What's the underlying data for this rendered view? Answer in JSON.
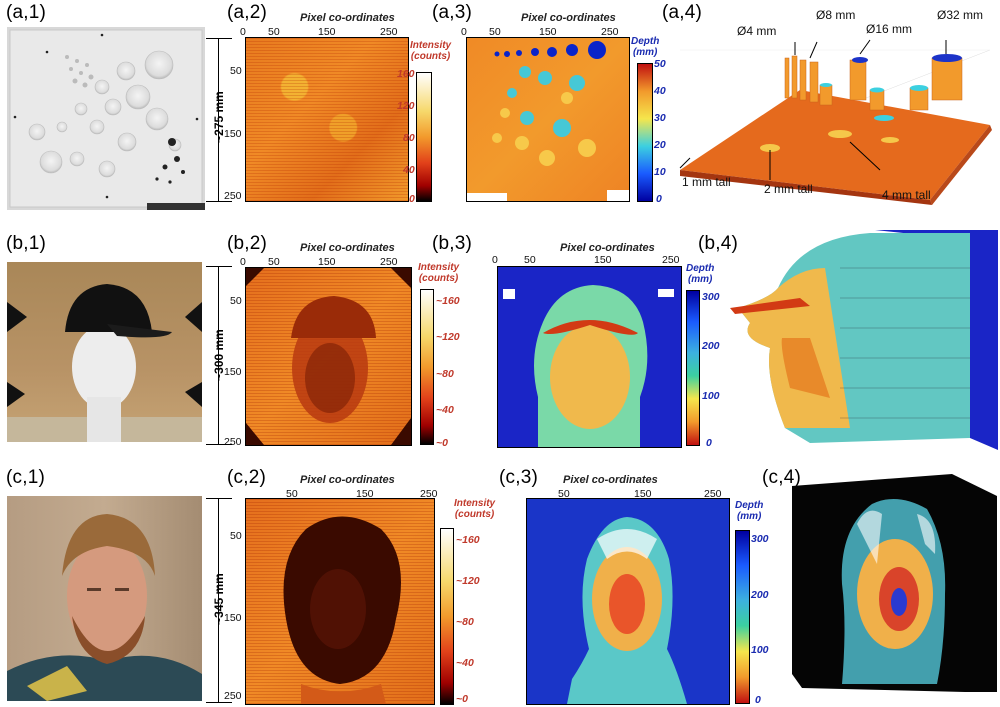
{
  "panel_labels": {
    "a1": "(a,1)",
    "a2": "(a,2)",
    "a3": "(a,3)",
    "a4": "(a,4)",
    "b1": "(b,1)",
    "b2": "(b,2)",
    "b3": "(b,3)",
    "b4": "(b,4)",
    "c1": "(c,1)",
    "c2": "(c,2)",
    "c3": "(c,3)",
    "c4": "(c,4)"
  },
  "pixel_axis_title": "Pixel co-ordinates",
  "x_ticks": [
    "0",
    "50",
    "150",
    "250"
  ],
  "y_ticks": [
    "50",
    "150",
    "250"
  ],
  "intensity_title": "Intensity\n(counts)",
  "depth_title": "Depth\n(mm)",
  "intensity_ticks": [
    "160",
    "120",
    "80",
    "40",
    "0"
  ],
  "intensity_ticks_dash": [
    "~160",
    "~120",
    "~80",
    "~40",
    "~0"
  ],
  "depth_ticks_a": [
    "50",
    "40",
    "30",
    "20",
    "10",
    "0"
  ],
  "depth_ticks_bc": [
    "300",
    "200",
    "100",
    "0"
  ],
  "row_dims": {
    "a": "~275 mm",
    "b": "~300 mm",
    "c": "~345 mm"
  },
  "annotations": {
    "d4": "Ø4 mm",
    "d8": "Ø8 mm",
    "d16": "Ø16 mm",
    "d32": "Ø32 mm",
    "t1": "1 mm tall",
    "t2": "2 mm tall",
    "t4": "4 mm tall"
  },
  "colors": {
    "intensity_label": "#c0392b",
    "depth_label": "#1a2bb0"
  }
}
